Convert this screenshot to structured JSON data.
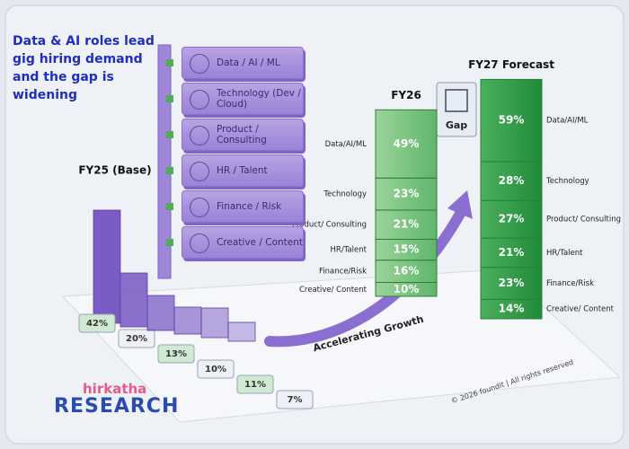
{
  "chart_data": {
    "type": "tower",
    "title": "Data & AI roles lead gig hiring demand and the gap is widening",
    "categories": [
      "Data / AI / ML",
      "Technology (Dev / Cloud)",
      "Product / Consulting",
      "HR / Talent",
      "Finance / Risk",
      "Creative / Content"
    ],
    "short_categories": [
      "Data/AI/ML",
      "Technology",
      "Product/ Consulting",
      "HR/Talent",
      "Finance/Risk",
      "Creative/ Content"
    ],
    "series": [
      {
        "name": "FY25 (Base)",
        "color": "#7b5cc4",
        "values": [
          42,
          20,
          13,
          10,
          11,
          7
        ],
        "value_labels": [
          "42%",
          "20%",
          "13%",
          "10%",
          "11%",
          "7%"
        ]
      },
      {
        "name": "FY26",
        "color": "#7cc784",
        "values": [
          49,
          23,
          21,
          15,
          16,
          10
        ],
        "value_labels": [
          "49%",
          "23%",
          "21%",
          "15%",
          "16%",
          "10%"
        ]
      },
      {
        "name": "FY27 Forecast",
        "color": "#35a24c",
        "values": [
          59,
          28,
          27,
          21,
          23,
          14
        ],
        "value_labels": [
          "59%",
          "28%",
          "27%",
          "21%",
          "23%",
          "14%"
        ]
      }
    ],
    "annotations": [
      "Gap",
      "Accelerating Growth"
    ],
    "footer": "© 2026 foundit | All rights reserved",
    "brand": {
      "name": "hirkatha",
      "tagline": "RESEARCH"
    }
  }
}
